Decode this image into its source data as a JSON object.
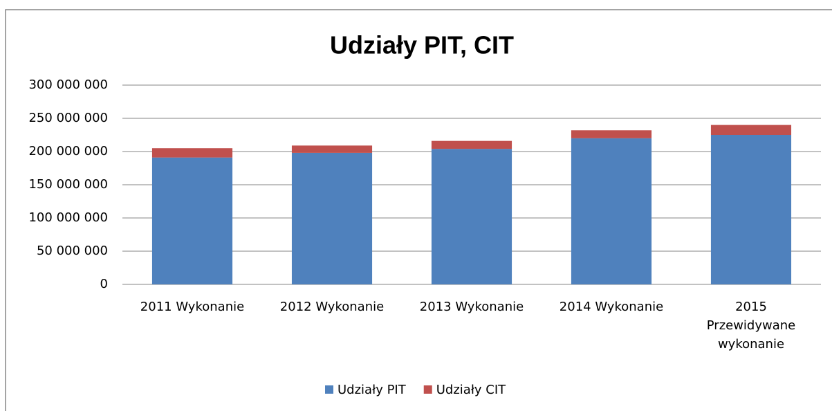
{
  "chart_data": {
    "type": "bar",
    "stacked": true,
    "title": "Udziały PIT, CIT",
    "categories": [
      "2011 Wykonanie",
      "2012 Wykonanie",
      "2013 Wykonanie",
      "2014 Wykonanie",
      "2015 Przewidywane wykonanie"
    ],
    "series": [
      {
        "name": "Udziały PIT",
        "color": "#4f81bd",
        "values": [
          191000000,
          198000000,
          204000000,
          220000000,
          225000000
        ]
      },
      {
        "name": "Udziały CIT",
        "color": "#c0504d",
        "values": [
          14000000,
          11000000,
          12000000,
          12000000,
          15000000
        ]
      }
    ],
    "ylim": [
      0,
      300000000
    ],
    "yticks": [
      0,
      {
        "value": 50000000,
        "label": "50 000 000"
      },
      {
        "value": 100000000,
        "label": "100 000 000"
      },
      {
        "value": 150000000,
        "label": "150 000 000"
      },
      {
        "value": 200000000,
        "label": "200 000 000"
      },
      {
        "value": 250000000,
        "label": "250 000 000"
      },
      {
        "value": 300000000,
        "label": "300 000 000"
      }
    ],
    "grid": true,
    "legend": "bottom"
  }
}
